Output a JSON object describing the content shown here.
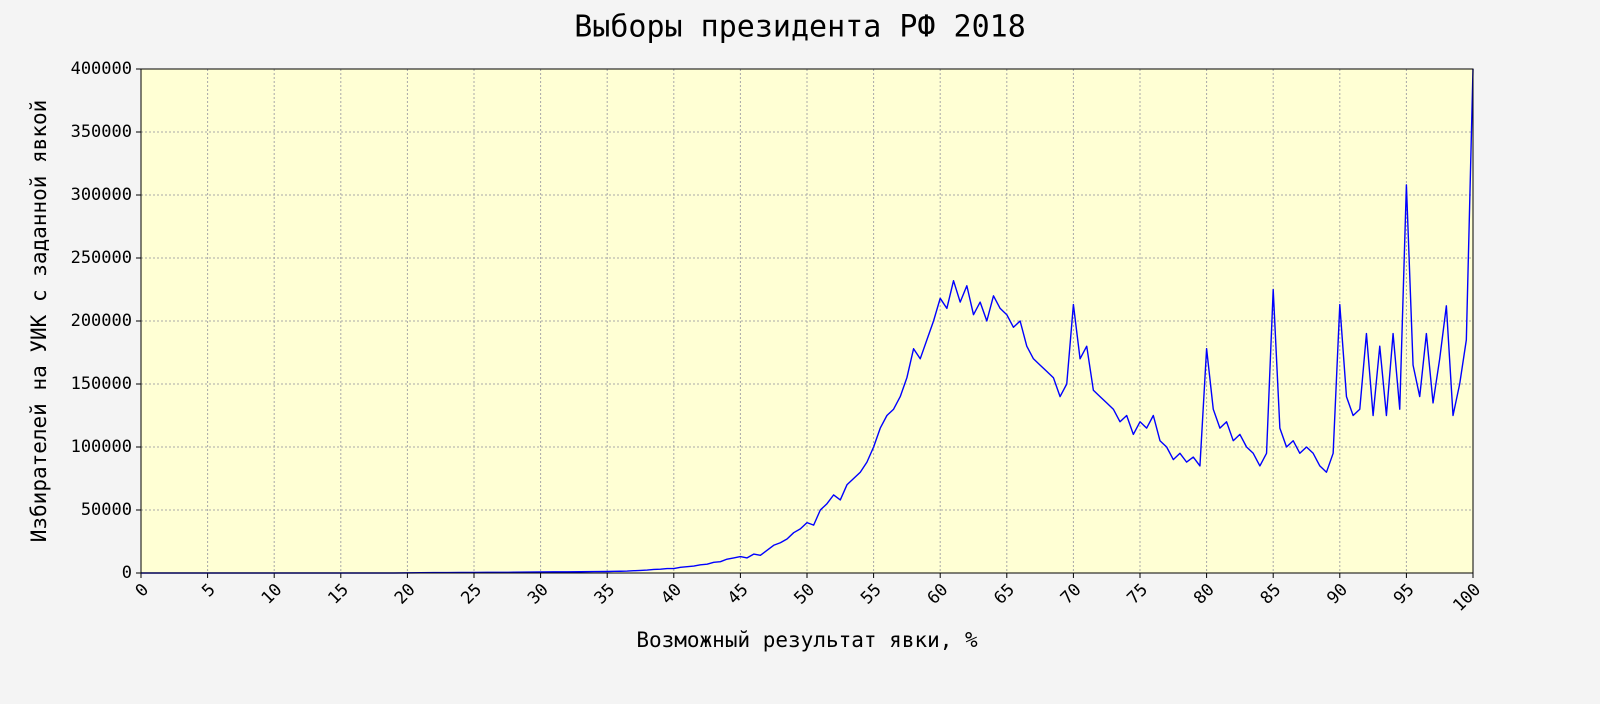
{
  "chart_data": {
    "type": "line",
    "title": "Выборы президента РФ 2018",
    "xlabel": "Возможный результат явки, %",
    "ylabel": "Избирателей на УИК с заданной явкой",
    "color": "#0000ff",
    "background": "#ffffd4",
    "grid": true,
    "xlim": [
      0,
      100
    ],
    "ylim": [
      0,
      400000
    ],
    "xticks": [
      0,
      5,
      10,
      15,
      20,
      25,
      30,
      35,
      40,
      45,
      50,
      55,
      60,
      65,
      70,
      75,
      80,
      85,
      90,
      95,
      100
    ],
    "yticks": [
      0,
      50000,
      100000,
      150000,
      200000,
      250000,
      300000,
      350000,
      400000
    ],
    "x": [
      0,
      1,
      2,
      3,
      4,
      5,
      6,
      7,
      8,
      9,
      10,
      11,
      12,
      13,
      14,
      15,
      16,
      17,
      18,
      19,
      20,
      21,
      22,
      23,
      24,
      25,
      26,
      27,
      28,
      29,
      30,
      31,
      32,
      33,
      34,
      35,
      35.5,
      36,
      36.5,
      37,
      37.5,
      38,
      38.5,
      39,
      39.5,
      40,
      40.5,
      41,
      41.5,
      42,
      42.5,
      43,
      43.5,
      44,
      44.5,
      45,
      45.5,
      46,
      46.5,
      47,
      47.5,
      48,
      48.5,
      49,
      49.5,
      50,
      50.5,
      51,
      51.5,
      52,
      52.5,
      53,
      53.5,
      54,
      54.5,
      55,
      55.5,
      56,
      56.5,
      57,
      57.5,
      58,
      58.5,
      59,
      59.5,
      60,
      60.5,
      61,
      61.5,
      62,
      62.5,
      63,
      63.5,
      64,
      64.5,
      65,
      65.5,
      66,
      66.5,
      67,
      67.5,
      68,
      68.5,
      69,
      69.5,
      70,
      70.5,
      71,
      71.5,
      72,
      72.5,
      73,
      73.5,
      74,
      74.5,
      75,
      75.5,
      76,
      76.5,
      77,
      77.5,
      78,
      78.5,
      79,
      79.5,
      80,
      80.5,
      81,
      81.5,
      82,
      82.5,
      83,
      83.5,
      84,
      84.5,
      85,
      85.5,
      86,
      86.5,
      87,
      87.5,
      88,
      88.5,
      89,
      89.5,
      90,
      90.5,
      91,
      91.5,
      92,
      92.5,
      93,
      93.5,
      94,
      94.5,
      95,
      95.5,
      96,
      96.5,
      97,
      97.5,
      98,
      98.5,
      99,
      99.5,
      100
    ],
    "values": [
      0,
      0,
      0,
      0,
      0,
      0,
      0,
      0,
      0,
      0,
      0,
      0,
      0,
      0,
      0,
      0,
      0,
      0,
      0,
      0,
      100,
      200,
      300,
      300,
      400,
      400,
      500,
      500,
      600,
      700,
      800,
      900,
      900,
      1000,
      1100,
      1200,
      1300,
      1400,
      1500,
      1800,
      2000,
      2300,
      2800,
      3000,
      3500,
      3500,
      4500,
      5000,
      5500,
      6500,
      7000,
      8500,
      9000,
      11000,
      12000,
      13000,
      12000,
      15000,
      14000,
      18000,
      22000,
      24000,
      27000,
      32000,
      35000,
      40000,
      38000,
      50000,
      55000,
      62000,
      58000,
      70000,
      75000,
      80000,
      88000,
      100000,
      115000,
      125000,
      130000,
      140000,
      155000,
      178000,
      170000,
      185000,
      200000,
      218000,
      210000,
      232000,
      215000,
      228000,
      205000,
      215000,
      200000,
      220000,
      210000,
      205000,
      195000,
      200000,
      180000,
      170000,
      165000,
      160000,
      155000,
      140000,
      150000,
      213000,
      170000,
      180000,
      145000,
      140000,
      135000,
      130000,
      120000,
      125000,
      110000,
      120000,
      115000,
      125000,
      105000,
      100000,
      90000,
      95000,
      88000,
      92000,
      85000,
      178000,
      130000,
      115000,
      120000,
      105000,
      110000,
      100000,
      95000,
      85000,
      95000,
      225000,
      115000,
      100000,
      105000,
      95000,
      100000,
      95000,
      85000,
      80000,
      95000,
      213000,
      140000,
      125000,
      130000,
      190000,
      125000,
      180000,
      125000,
      190000,
      130000,
      308000,
      165000,
      140000,
      190000,
      135000,
      170000,
      212000,
      125000,
      150000,
      185000,
      400000
    ]
  }
}
